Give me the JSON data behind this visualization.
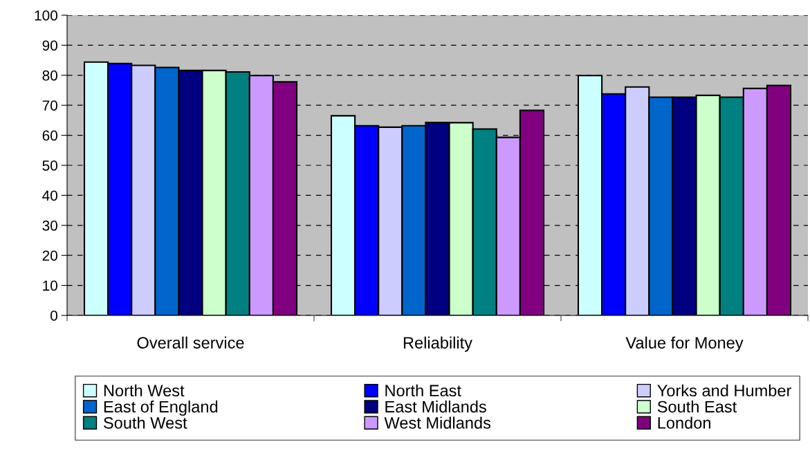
{
  "chart_data": {
    "type": "bar",
    "categories": [
      "Overall service",
      "Reliability",
      "Value for Money"
    ],
    "ylim": [
      0,
      100
    ],
    "yticks": [
      0,
      10,
      20,
      30,
      40,
      50,
      60,
      70,
      80,
      90,
      100
    ],
    "grid": "y",
    "legend": "bottom",
    "series": [
      {
        "name": "North West",
        "color": "#ccffff",
        "values": [
          84.4,
          66.5,
          79.9
        ]
      },
      {
        "name": "North East",
        "color": "#0000ff",
        "values": [
          83.9,
          63.2,
          73.8
        ]
      },
      {
        "name": "Yorks and Humber",
        "color": "#ccccff",
        "values": [
          83.3,
          62.7,
          76.1
        ]
      },
      {
        "name": "East of England",
        "color": "#0066cc",
        "values": [
          82.6,
          63.2,
          72.7
        ]
      },
      {
        "name": "East Midlands",
        "color": "#000080",
        "values": [
          81.6,
          64.3,
          72.7
        ]
      },
      {
        "name": "South East",
        "color": "#ccffcc",
        "values": [
          81.6,
          64.2,
          73.3
        ]
      },
      {
        "name": "South West",
        "color": "#008080",
        "values": [
          81.1,
          62.1,
          72.7
        ]
      },
      {
        "name": "West Midlands",
        "color": "#cc99ff",
        "values": [
          79.9,
          59.3,
          75.6
        ]
      },
      {
        "name": "London",
        "color": "#800080",
        "values": [
          77.8,
          68.3,
          76.6
        ]
      }
    ]
  }
}
